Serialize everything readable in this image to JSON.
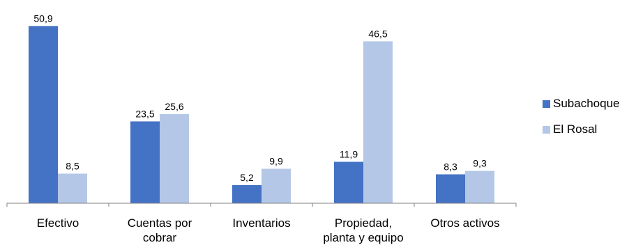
{
  "chart_data": {
    "type": "bar",
    "categories": [
      "Efectivo",
      "Cuentas por cobrar",
      "Inventarios",
      "Propiedad, planta y equipo",
      "Otros activos"
    ],
    "category_lines": [
      [
        "Efectivo"
      ],
      [
        "Cuentas por",
        "cobrar"
      ],
      [
        "Inventarios"
      ],
      [
        "Propiedad,",
        "planta y equipo"
      ],
      [
        "Otros activos"
      ]
    ],
    "series": [
      {
        "name": "Subachoque",
        "values": [
          50.9,
          23.5,
          5.2,
          11.9,
          8.3
        ],
        "labels": [
          "50,9",
          "23,5",
          "5,2",
          "11,9",
          "8,3"
        ],
        "color": "#4472C4"
      },
      {
        "name": "El Rosal",
        "values": [
          8.5,
          25.6,
          9.9,
          46.5,
          9.3
        ],
        "labels": [
          "8,5",
          "25,6",
          "9,9",
          "46,5",
          "9,3"
        ],
        "color": "#B4C7E7"
      }
    ],
    "title": "",
    "xlabel": "",
    "ylabel": "",
    "ylim": [
      0,
      52
    ],
    "grid": false,
    "legend_position": "right"
  }
}
